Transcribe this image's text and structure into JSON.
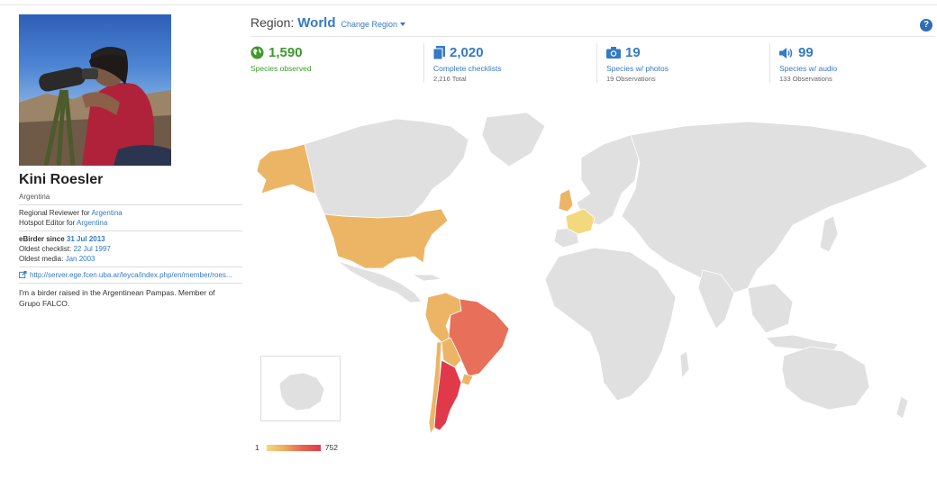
{
  "profile": {
    "name": "Kini Roesler",
    "country": "Argentina",
    "roles": [
      {
        "prefix": "Regional Reviewer for ",
        "link": "Argentina"
      },
      {
        "prefix": "Hotspot Editor for ",
        "link": "Argentina"
      }
    ],
    "ebirder_since_label": "eBirder since ",
    "ebirder_since": "31 Jul 2013",
    "oldest_checklist_label": "Oldest checklist: ",
    "oldest_checklist": "22 Jul 1997",
    "oldest_media_label": "Oldest media: ",
    "oldest_media": "Jan 2003",
    "url": "http://server.ege.fcen.uba.ar/leyca/index.php/en/member/roes...",
    "bio": "I'm a birder raised in the Argentinean Pampas. Member of Grupo FALCO."
  },
  "header": {
    "region_label": "Region:",
    "region_value": "World",
    "change_region": "Change Region",
    "help": "?"
  },
  "stats": [
    {
      "icon": "globe-icon",
      "number": "1,590",
      "label": "Species observed",
      "sub": ""
    },
    {
      "icon": "checklist-icon",
      "number": "2,020",
      "label": "Complete checklists",
      "sub": "2,216 Total"
    },
    {
      "icon": "camera-icon",
      "number": "19",
      "label": "Species w/ photos",
      "sub": "19 Observations"
    },
    {
      "icon": "speaker-icon",
      "number": "99",
      "label": "Species w/ audio",
      "sub": "133 Observations"
    }
  ],
  "legend": {
    "min": "1",
    "max": "752"
  },
  "colors": {
    "accent": "#3579c5",
    "green": "#3d9a2b",
    "land": "#e0e0e0",
    "low": "#f3d97d",
    "mid": "#ecb565",
    "high_mid": "#e8705a",
    "high": "#e03a4a"
  }
}
